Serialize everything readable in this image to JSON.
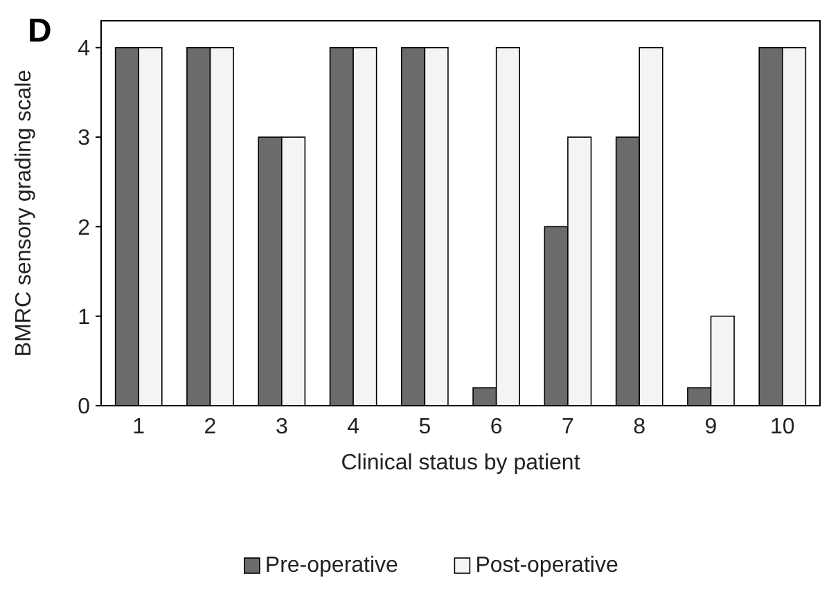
{
  "chart_data": {
    "type": "bar",
    "xlabel": "Clinical status by patient",
    "ylabel": "BMRC sensory grading scale",
    "annotations": [
      "D"
    ],
    "categories": [
      "1",
      "2",
      "3",
      "4",
      "5",
      "6",
      "7",
      "8",
      "9",
      "10"
    ],
    "series": [
      {
        "name": "Pre-operative",
        "color": "#6b6b6b",
        "values": [
          4,
          4,
          3,
          4,
          4,
          0.2,
          2,
          3,
          0.2,
          4
        ]
      },
      {
        "name": "Post-operative",
        "color": "#f4f4f4",
        "values": [
          4,
          4,
          3,
          4,
          4,
          4,
          3,
          4,
          1,
          4
        ]
      }
    ],
    "ylim": [
      0,
      4.3
    ],
    "yticks": [
      0,
      1,
      2,
      3,
      4
    ],
    "grid": false,
    "legend": "bottom"
  }
}
